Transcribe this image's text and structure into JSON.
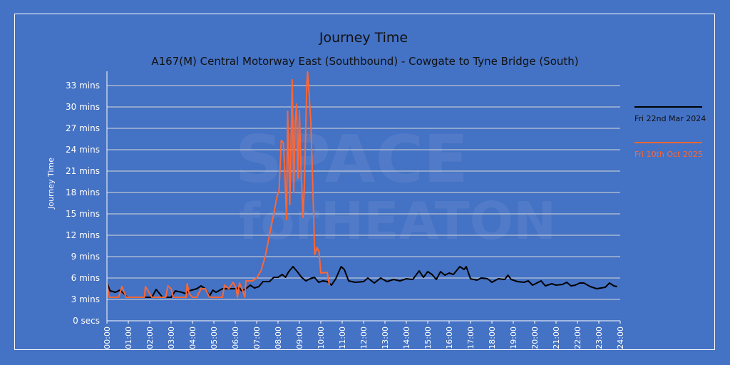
{
  "chart_data": {
    "type": "line",
    "title": "Journey Time",
    "subtitle": "A167(M) Central Motorway East (Southbound) - Cowgate to Tyne Bridge (South)",
    "ylabel": "Journey Time",
    "xlabel": "",
    "watermark": "SPACE for HEATON",
    "ylim": [
      0,
      35
    ],
    "xlim": [
      "00:00",
      "24:00"
    ],
    "grid": true,
    "legend_position": "right",
    "yticks": [
      {
        "value": 0,
        "label": "0 secs"
      },
      {
        "value": 3,
        "label": "3 mins"
      },
      {
        "value": 6,
        "label": "6 mins"
      },
      {
        "value": 9,
        "label": "9 mins"
      },
      {
        "value": 12,
        "label": "12 mins"
      },
      {
        "value": 15,
        "label": "15 mins"
      },
      {
        "value": 18,
        "label": "18 mins"
      },
      {
        "value": 21,
        "label": "21 mins"
      },
      {
        "value": 24,
        "label": "24 mins"
      },
      {
        "value": 27,
        "label": "27 mins"
      },
      {
        "value": 30,
        "label": "30 mins"
      },
      {
        "value": 33,
        "label": "33 mins"
      }
    ],
    "xticks": [
      "00:00",
      "01:00",
      "02:00",
      "03:00",
      "04:00",
      "05:00",
      "06:00",
      "07:00",
      "08:00",
      "09:00",
      "10:00",
      "11:00",
      "12:00",
      "13:00",
      "14:00",
      "15:00",
      "16:00",
      "17:00",
      "18:00",
      "19:00",
      "20:00",
      "21:00",
      "22:00",
      "23:00",
      "24:00"
    ],
    "series": [
      {
        "name": "Fri 22nd Mar 2024",
        "color": "#000000",
        "points": [
          [
            "00:00",
            5.3
          ],
          [
            "00:09",
            4.2
          ],
          [
            "00:24",
            4.0
          ],
          [
            "00:36",
            4.3
          ],
          [
            "00:48",
            3.8
          ],
          [
            "00:57",
            3.3
          ],
          [
            "02:06",
            3.3
          ],
          [
            "02:18",
            4.4
          ],
          [
            "02:36",
            3.3
          ],
          [
            "03:00",
            3.3
          ],
          [
            "03:12",
            4.2
          ],
          [
            "03:30",
            4.0
          ],
          [
            "03:42",
            3.8
          ],
          [
            "03:51",
            4.2
          ],
          [
            "04:12",
            4.5
          ],
          [
            "04:24",
            4.9
          ],
          [
            "04:36",
            4.5
          ],
          [
            "04:48",
            3.5
          ],
          [
            "04:57",
            4.3
          ],
          [
            "05:06",
            4.0
          ],
          [
            "05:24",
            4.5
          ],
          [
            "05:42",
            4.5
          ],
          [
            "06:00",
            4.5
          ],
          [
            "06:12",
            4.6
          ],
          [
            "06:18",
            4.2
          ],
          [
            "06:30",
            4.5
          ],
          [
            "06:42",
            5.0
          ],
          [
            "06:54",
            4.6
          ],
          [
            "07:06",
            4.8
          ],
          [
            "07:18",
            5.5
          ],
          [
            "07:36",
            5.5
          ],
          [
            "07:48",
            6.1
          ],
          [
            "08:00",
            6.1
          ],
          [
            "08:12",
            6.5
          ],
          [
            "08:21",
            6.1
          ],
          [
            "08:30",
            6.9
          ],
          [
            "08:42",
            7.6
          ],
          [
            "08:54",
            6.9
          ],
          [
            "09:06",
            6.1
          ],
          [
            "09:18",
            5.6
          ],
          [
            "09:30",
            5.9
          ],
          [
            "09:42",
            6.1
          ],
          [
            "09:54",
            5.4
          ],
          [
            "10:06",
            5.6
          ],
          [
            "10:18",
            5.5
          ],
          [
            "10:30",
            5.0
          ],
          [
            "10:42",
            5.9
          ],
          [
            "10:57",
            7.6
          ],
          [
            "11:06",
            7.2
          ],
          [
            "11:18",
            5.6
          ],
          [
            "11:36",
            5.4
          ],
          [
            "12:00",
            5.5
          ],
          [
            "12:12",
            6.0
          ],
          [
            "12:30",
            5.3
          ],
          [
            "12:48",
            6.0
          ],
          [
            "13:06",
            5.5
          ],
          [
            "13:24",
            5.8
          ],
          [
            "13:42",
            5.6
          ],
          [
            "14:00",
            5.9
          ],
          [
            "14:18",
            5.8
          ],
          [
            "14:36",
            7.0
          ],
          [
            "14:48",
            6.1
          ],
          [
            "15:00",
            6.9
          ],
          [
            "15:12",
            6.5
          ],
          [
            "15:24",
            5.8
          ],
          [
            "15:36",
            6.9
          ],
          [
            "15:48",
            6.4
          ],
          [
            "16:00",
            6.7
          ],
          [
            "16:12",
            6.5
          ],
          [
            "16:30",
            7.6
          ],
          [
            "16:42",
            7.2
          ],
          [
            "16:48",
            7.6
          ],
          [
            "17:00",
            5.9
          ],
          [
            "17:18",
            5.7
          ],
          [
            "17:30",
            6.0
          ],
          [
            "17:48",
            5.9
          ],
          [
            "18:00",
            5.4
          ],
          [
            "18:18",
            5.9
          ],
          [
            "18:36",
            5.8
          ],
          [
            "18:45",
            6.4
          ],
          [
            "18:54",
            5.8
          ],
          [
            "19:12",
            5.5
          ],
          [
            "19:30",
            5.4
          ],
          [
            "19:42",
            5.6
          ],
          [
            "19:54",
            5.0
          ],
          [
            "20:06",
            5.3
          ],
          [
            "20:18",
            5.6
          ],
          [
            "20:30",
            4.9
          ],
          [
            "20:48",
            5.2
          ],
          [
            "21:00",
            5.0
          ],
          [
            "21:18",
            5.1
          ],
          [
            "21:30",
            5.4
          ],
          [
            "21:42",
            4.9
          ],
          [
            "21:54",
            5.0
          ],
          [
            "22:06",
            5.3
          ],
          [
            "22:18",
            5.3
          ],
          [
            "22:36",
            4.8
          ],
          [
            "22:54",
            4.5
          ],
          [
            "23:06",
            4.6
          ],
          [
            "23:18",
            4.7
          ],
          [
            "23:30",
            5.3
          ],
          [
            "23:42",
            4.9
          ],
          [
            "23:51",
            4.8
          ]
        ]
      },
      {
        "name": "Fri 10th Oct 2025",
        "color": "#ff6633",
        "points": [
          [
            "00:00",
            5.3
          ],
          [
            "00:06",
            3.3
          ],
          [
            "00:33",
            3.3
          ],
          [
            "00:42",
            4.8
          ],
          [
            "00:54",
            3.3
          ],
          [
            "01:45",
            3.3
          ],
          [
            "01:48",
            4.8
          ],
          [
            "02:00",
            3.8
          ],
          [
            "02:06",
            3.3
          ],
          [
            "02:45",
            3.3
          ],
          [
            "02:51",
            4.9
          ],
          [
            "03:00",
            4.5
          ],
          [
            "03:06",
            3.3
          ],
          [
            "03:42",
            3.3
          ],
          [
            "03:45",
            5.2
          ],
          [
            "03:51",
            3.8
          ],
          [
            "04:00",
            3.3
          ],
          [
            "04:12",
            3.3
          ],
          [
            "04:24",
            4.5
          ],
          [
            "04:36",
            4.5
          ],
          [
            "04:48",
            3.3
          ],
          [
            "05:24",
            3.3
          ],
          [
            "05:30",
            5.0
          ],
          [
            "05:42",
            4.5
          ],
          [
            "05:54",
            5.4
          ],
          [
            "06:03",
            4.5
          ],
          [
            "06:06",
            3.3
          ],
          [
            "06:12",
            5.3
          ],
          [
            "06:21",
            4.2
          ],
          [
            "06:27",
            3.3
          ],
          [
            "06:30",
            5.6
          ],
          [
            "06:48",
            5.6
          ],
          [
            "07:00",
            6.0
          ],
          [
            "07:12",
            7.0
          ],
          [
            "07:24",
            9.0
          ],
          [
            "07:36",
            12.0
          ],
          [
            "07:48",
            15.0
          ],
          [
            "07:57",
            17.4
          ],
          [
            "08:03",
            18.3
          ],
          [
            "08:09",
            25.3
          ],
          [
            "08:15",
            25.0
          ],
          [
            "08:18",
            22.0
          ],
          [
            "08:24",
            14.2
          ],
          [
            "08:27",
            29.4
          ],
          [
            "08:33",
            16.3
          ],
          [
            "08:40",
            33.8
          ],
          [
            "08:44",
            18.0
          ],
          [
            "08:48",
            27.9
          ],
          [
            "08:52",
            30.4
          ],
          [
            "08:56",
            20.0
          ],
          [
            "09:00",
            29.5
          ],
          [
            "09:04",
            22.0
          ],
          [
            "09:10",
            14.5
          ],
          [
            "09:14",
            19.0
          ],
          [
            "09:18",
            27.5
          ],
          [
            "09:21",
            33.5
          ],
          [
            "09:23",
            34.9
          ],
          [
            "09:27",
            32.0
          ],
          [
            "09:32",
            28.0
          ],
          [
            "09:38",
            18.0
          ],
          [
            "09:43",
            9.3
          ],
          [
            "09:49",
            10.3
          ],
          [
            "09:55",
            9.7
          ],
          [
            "10:00",
            6.7
          ],
          [
            "10:18",
            6.8
          ],
          [
            "10:24",
            5.0
          ]
        ]
      }
    ]
  }
}
